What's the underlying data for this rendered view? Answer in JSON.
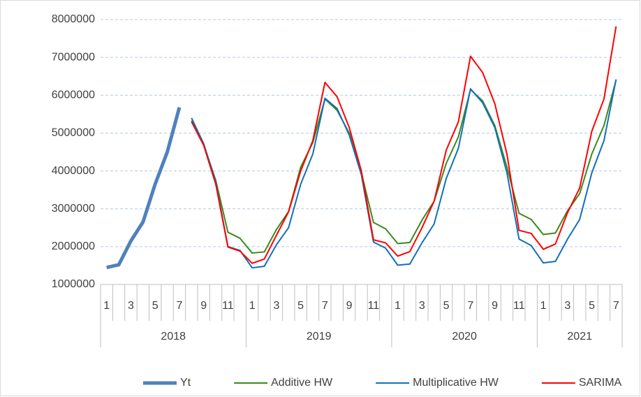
{
  "chart_data": {
    "type": "line",
    "categories": [
      "1",
      null,
      "3",
      null,
      "5",
      null,
      "7",
      null,
      "9",
      null,
      "11",
      null,
      "1",
      null,
      "3",
      null,
      "5",
      null,
      "7",
      null,
      "9",
      null,
      "11",
      null,
      "1",
      null,
      "3",
      null,
      "5",
      null,
      "7",
      null,
      "9",
      null,
      "11",
      null,
      "1",
      null,
      "3",
      null,
      "5",
      null,
      "7"
    ],
    "groups": [
      "2018",
      "2019",
      "2020",
      "2021"
    ],
    "ylim": [
      1000000,
      8000000
    ],
    "yticks": [
      1000000,
      2000000,
      3000000,
      4000000,
      5000000,
      6000000,
      7000000,
      8000000
    ],
    "grid": true,
    "legend": "bottom",
    "series": [
      {
        "name": "Yt",
        "color": "#4f81bd",
        "width": 5,
        "values": [
          1450000,
          1520000,
          2150000,
          2650000,
          3650000,
          4500000,
          5680000,
          null,
          null,
          null,
          null,
          null,
          null,
          null,
          null,
          null,
          null,
          null,
          null,
          null,
          null,
          null,
          null,
          null,
          null,
          null,
          null,
          null,
          null,
          null,
          null,
          null,
          null,
          null,
          null,
          null,
          null,
          null,
          null,
          null,
          null,
          null,
          null
        ]
      },
      {
        "name": "Additive HW",
        "color": "#3a8a1e",
        "width": 2,
        "values": [
          null,
          null,
          null,
          null,
          null,
          null,
          null,
          5330000,
          4700000,
          3750000,
          2380000,
          2220000,
          1830000,
          1860000,
          2450000,
          2930000,
          4100000,
          4750000,
          5900000,
          5600000,
          5000000,
          3950000,
          2640000,
          2470000,
          2080000,
          2110000,
          2700000,
          3200000,
          4200000,
          4900000,
          6150000,
          5850000,
          5200000,
          4100000,
          2880000,
          2720000,
          2320000,
          2360000,
          2950000,
          3400000,
          4450000,
          5200000,
          6400000
        ]
      },
      {
        "name": "Multiplicative HW",
        "color": "#1070b8",
        "width": 2,
        "values": [
          null,
          null,
          null,
          null,
          null,
          null,
          null,
          5400000,
          4720000,
          3700000,
          2000000,
          1900000,
          1440000,
          1480000,
          2050000,
          2500000,
          3650000,
          4450000,
          5920000,
          5650000,
          4950000,
          3900000,
          2120000,
          1960000,
          1510000,
          1540000,
          2100000,
          2600000,
          3800000,
          4600000,
          6170000,
          5800000,
          5150000,
          3950000,
          2200000,
          2030000,
          1570000,
          1610000,
          2200000,
          2720000,
          3950000,
          4800000,
          6420000
        ]
      },
      {
        "name": "SARIMA",
        "color": "#ff0000",
        "width": 2,
        "values": [
          null,
          null,
          null,
          null,
          null,
          null,
          null,
          5300000,
          4680000,
          3650000,
          1990000,
          1880000,
          1560000,
          1670000,
          2300000,
          2920000,
          4000000,
          4800000,
          6340000,
          5960000,
          5150000,
          4000000,
          2180000,
          2100000,
          1750000,
          1870000,
          2500000,
          3200000,
          4550000,
          5300000,
          7030000,
          6600000,
          5780000,
          4450000,
          2430000,
          2350000,
          1930000,
          2070000,
          2900000,
          3550000,
          5050000,
          5900000,
          7820000
        ]
      }
    ]
  }
}
